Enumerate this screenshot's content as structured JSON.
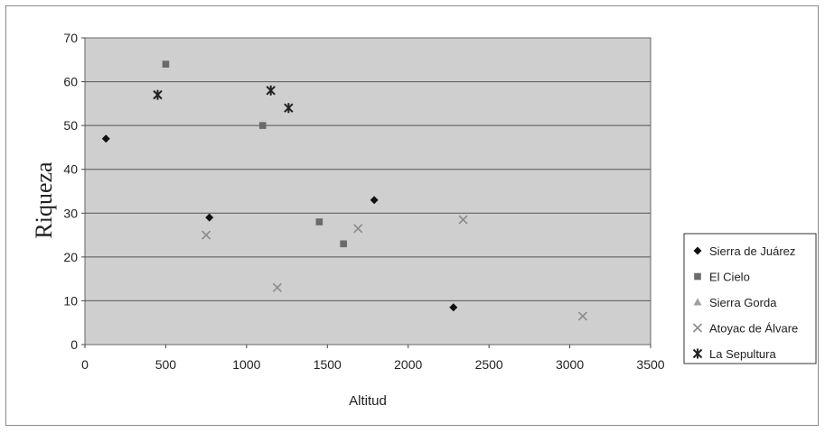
{
  "chart_data": {
    "type": "scatter",
    "xlabel": "Altitud",
    "ylabel": "Riqueza",
    "xlim": [
      0,
      3500
    ],
    "ylim": [
      0,
      70
    ],
    "xticks": [
      0,
      500,
      1000,
      1500,
      2000,
      2500,
      3000,
      3500
    ],
    "yticks": [
      0,
      10,
      20,
      30,
      40,
      50,
      60,
      70
    ],
    "grid": true,
    "legend_position": "right",
    "series": [
      {
        "name": "Sierra de Juárez",
        "marker": "diamond",
        "color": "#111111",
        "points": [
          [
            130,
            47
          ],
          [
            770,
            29
          ],
          [
            1790,
            33
          ],
          [
            2280,
            8.5
          ]
        ]
      },
      {
        "name": "El Cielo",
        "marker": "square",
        "color": "#6a6a6a",
        "points": [
          [
            500,
            64
          ],
          [
            1100,
            50
          ],
          [
            1450,
            28
          ],
          [
            1600,
            23
          ]
        ]
      },
      {
        "name": "Sierra Gorda",
        "marker": "triangle",
        "color": "#a0a0a0",
        "points": []
      },
      {
        "name": "Atoyac de Álvare",
        "marker": "x",
        "color": "#8a8a8a",
        "points": [
          [
            750,
            25
          ],
          [
            1190,
            13
          ],
          [
            1690,
            26.5
          ],
          [
            2340,
            28.5
          ],
          [
            3080,
            6.5
          ]
        ]
      },
      {
        "name": "La Sepultura",
        "marker": "star",
        "color": "#222222",
        "points": [
          [
            450,
            57
          ],
          [
            1150,
            58
          ],
          [
            1260,
            54
          ]
        ]
      }
    ]
  }
}
